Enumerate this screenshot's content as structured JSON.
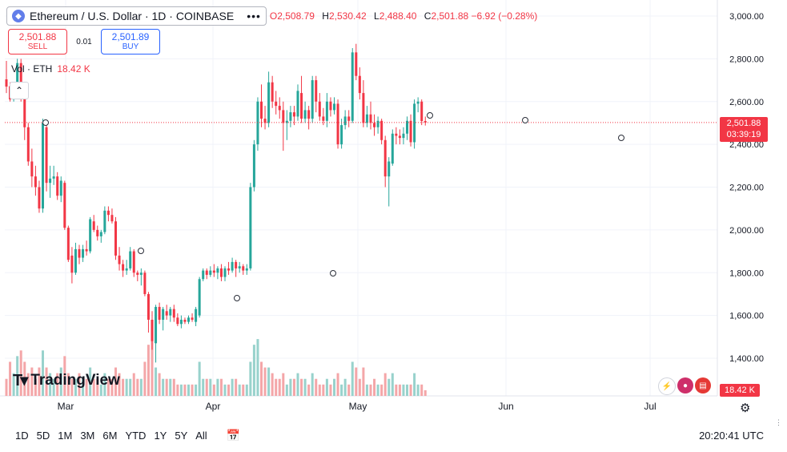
{
  "symbol": {
    "title": "Ethereum / U.S. Dollar · 1D · COINBASE",
    "logo_icon": "ethereum-icon",
    "menu_dots": "•••",
    "open": "O2,508.79",
    "high_k": "H",
    "high": "2,530.42",
    "low_k": "L",
    "low": "2,488.40",
    "close_k": "C",
    "close": "2,501.88",
    "change": "−6.92 (−0.28%)"
  },
  "trade": {
    "sell_price": "2,501.88",
    "sell_label": "SELL",
    "spread": "0.01",
    "buy_price": "2,501.89",
    "buy_label": "BUY"
  },
  "volume_legend": {
    "label": "Vol · ETH",
    "value": "18.42 K"
  },
  "price_label": {
    "price": "2,501.88",
    "countdown": "03:39:19"
  },
  "volume_label": "18.42 K",
  "brand": {
    "name": "TradingView"
  },
  "bottom": {
    "ranges": [
      "1D",
      "5D",
      "1M",
      "3M",
      "6M",
      "YTD",
      "1Y",
      "5Y",
      "All"
    ],
    "clock": "20:20:41 UTC"
  },
  "colors": {
    "up": "#26a69a",
    "down": "#f23645",
    "vol_up": "#98d2cc",
    "vol_down": "#f4a6a8",
    "grid": "#f0f3fa"
  },
  "chart_data": {
    "type": "candlestick",
    "series": [
      {
        "name": "Ethereum / U.S. Dollar",
        "ohlc": [
          [
            2704,
            2790,
            2640,
            2670
          ],
          [
            2672,
            2690,
            2600,
            2610
          ],
          [
            2610,
            2660,
            2600,
            2650
          ],
          [
            2650,
            2800,
            2640,
            2780
          ],
          [
            2780,
            2800,
            2600,
            2630
          ],
          [
            2640,
            2660,
            2420,
            2480
          ],
          [
            2480,
            2500,
            2300,
            2320
          ],
          [
            2320,
            2380,
            2200,
            2250
          ],
          [
            2250,
            2300,
            2160,
            2200
          ],
          [
            2200,
            2230,
            2080,
            2100
          ],
          [
            2100,
            2520,
            2080,
            2500
          ],
          [
            2480,
            2500,
            2180,
            2220
          ],
          [
            2220,
            2300,
            2150,
            2240
          ],
          [
            2240,
            2300,
            2210,
            2250
          ],
          [
            2250,
            2270,
            2140,
            2160
          ],
          [
            2160,
            2250,
            2130,
            2230
          ],
          [
            2220,
            2230,
            2000,
            2010
          ],
          [
            2010,
            2020,
            1850,
            1860
          ],
          [
            1880,
            1920,
            1750,
            1800
          ],
          [
            1800,
            1940,
            1790,
            1910
          ],
          [
            1910,
            1930,
            1840,
            1870
          ],
          [
            1870,
            1930,
            1850,
            1910
          ],
          [
            1910,
            1950,
            1880,
            1900
          ],
          [
            1900,
            2060,
            1890,
            2050
          ],
          [
            2040,
            2070,
            1990,
            2000
          ],
          [
            2000,
            2020,
            1950,
            1970
          ],
          [
            1970,
            2000,
            1940,
            1990
          ],
          [
            1990,
            2110,
            1980,
            2090
          ],
          [
            2090,
            2110,
            2040,
            2070
          ],
          [
            2070,
            2100,
            2030,
            2040
          ],
          [
            2040,
            2060,
            1860,
            1880
          ],
          [
            1880,
            1920,
            1810,
            1840
          ],
          [
            1840,
            1860,
            1780,
            1810
          ],
          [
            1810,
            1860,
            1790,
            1820
          ],
          [
            1820,
            1920,
            1810,
            1900
          ],
          [
            1900,
            1910,
            1780,
            1800
          ],
          [
            1800,
            1810,
            1760,
            1790
          ],
          [
            1790,
            1820,
            1740,
            1800
          ],
          [
            1800,
            1810,
            1690,
            1700
          ],
          [
            1700,
            1710,
            1520,
            1580
          ],
          [
            1580,
            1620,
            1440,
            1480
          ],
          [
            1470,
            1650,
            1380,
            1640
          ],
          [
            1640,
            1660,
            1560,
            1580
          ],
          [
            1580,
            1640,
            1530,
            1630
          ],
          [
            1620,
            1650,
            1580,
            1600
          ],
          [
            1600,
            1640,
            1570,
            1630
          ],
          [
            1630,
            1650,
            1570,
            1590
          ],
          [
            1590,
            1610,
            1550,
            1560
          ],
          [
            1560,
            1600,
            1540,
            1580
          ],
          [
            1580,
            1590,
            1560,
            1570
          ],
          [
            1570,
            1600,
            1560,
            1590
          ],
          [
            1590,
            1610,
            1570,
            1580
          ],
          [
            1570,
            1640,
            1550,
            1630
          ],
          [
            1600,
            1780,
            1590,
            1770
          ],
          [
            1770,
            1820,
            1760,
            1810
          ],
          [
            1810,
            1820,
            1770,
            1790
          ],
          [
            1790,
            1830,
            1780,
            1810
          ],
          [
            1810,
            1840,
            1780,
            1800
          ],
          [
            1800,
            1830,
            1770,
            1820
          ],
          [
            1820,
            1840,
            1760,
            1780
          ],
          [
            1780,
            1830,
            1760,
            1820
          ],
          [
            1820,
            1850,
            1790,
            1810
          ],
          [
            1810,
            1870,
            1800,
            1850
          ],
          [
            1850,
            1860,
            1780,
            1820
          ],
          [
            1820,
            1850,
            1800,
            1830
          ],
          [
            1830,
            1840,
            1790,
            1810
          ],
          [
            1810,
            1840,
            1790,
            1820
          ],
          [
            1820,
            2220,
            1810,
            2200
          ],
          [
            2200,
            2420,
            2180,
            2400
          ],
          [
            2400,
            2620,
            2370,
            2600
          ],
          [
            2600,
            2680,
            2480,
            2520
          ],
          [
            2520,
            2580,
            2470,
            2500
          ],
          [
            2500,
            2740,
            2480,
            2690
          ],
          [
            2690,
            2720,
            2570,
            2600
          ],
          [
            2600,
            2650,
            2540,
            2580
          ],
          [
            2580,
            2620,
            2520,
            2560
          ],
          [
            2560,
            2600,
            2370,
            2500
          ],
          [
            2500,
            2560,
            2420,
            2510
          ],
          [
            2510,
            2580,
            2480,
            2550
          ],
          [
            2550,
            2580,
            2490,
            2530
          ],
          [
            2530,
            2680,
            2510,
            2650
          ],
          [
            2640,
            2720,
            2500,
            2520
          ],
          [
            2520,
            2600,
            2500,
            2560
          ],
          [
            2560,
            2580,
            2470,
            2520
          ],
          [
            2520,
            2720,
            2500,
            2700
          ],
          [
            2700,
            2720,
            2550,
            2600
          ],
          [
            2600,
            2640,
            2510,
            2530
          ],
          [
            2530,
            2570,
            2490,
            2510
          ],
          [
            2510,
            2640,
            2480,
            2600
          ],
          [
            2600,
            2620,
            2530,
            2560
          ],
          [
            2560,
            2620,
            2540,
            2590
          ],
          [
            2590,
            2610,
            2380,
            2400
          ],
          [
            2400,
            2520,
            2380,
            2490
          ],
          [
            2490,
            2560,
            2470,
            2530
          ],
          [
            2530,
            2560,
            2480,
            2510
          ],
          [
            2510,
            2850,
            2500,
            2830
          ],
          [
            2830,
            2870,
            2700,
            2720
          ],
          [
            2720,
            2760,
            2610,
            2640
          ],
          [
            2640,
            2700,
            2480,
            2500
          ],
          [
            2500,
            2580,
            2480,
            2540
          ],
          [
            2540,
            2600,
            2470,
            2500
          ],
          [
            2500,
            2540,
            2440,
            2480
          ],
          [
            2480,
            2530,
            2450,
            2510
          ],
          [
            2510,
            2520,
            2400,
            2420
          ],
          [
            2420,
            2440,
            2200,
            2250
          ],
          [
            2250,
            2340,
            2110,
            2320
          ],
          [
            2310,
            2470,
            2300,
            2450
          ],
          [
            2450,
            2480,
            2400,
            2440
          ],
          [
            2440,
            2470,
            2400,
            2430
          ],
          [
            2430,
            2480,
            2400,
            2450
          ],
          [
            2450,
            2530,
            2420,
            2510
          ],
          [
            2510,
            2540,
            2390,
            2410
          ],
          [
            2410,
            2610,
            2380,
            2590
          ],
          [
            2590,
            2620,
            2550,
            2600
          ],
          [
            2600,
            2610,
            2490,
            2509
          ],
          [
            2509,
            2530,
            2488,
            2502
          ]
        ]
      }
    ],
    "volume": [
      3,
      6,
      4,
      7,
      8,
      6,
      4,
      5,
      3,
      5,
      8,
      5,
      4,
      3,
      4,
      5,
      7,
      4,
      3,
      3,
      4,
      3,
      3,
      5,
      3,
      3,
      2,
      4,
      3,
      3,
      5,
      4,
      3,
      3,
      3,
      4,
      3,
      3,
      6,
      9,
      11,
      5,
      4,
      3,
      3,
      3,
      3,
      2,
      2,
      2,
      2,
      2,
      2,
      6,
      3,
      3,
      3,
      2,
      3,
      3,
      2,
      2,
      3,
      3,
      2,
      2,
      2,
      6,
      9,
      10,
      6,
      5,
      5,
      4,
      3,
      3,
      4,
      2,
      3,
      3,
      4,
      3,
      3,
      2,
      4,
      3,
      2,
      2,
      3,
      2,
      3,
      4,
      2,
      3,
      2,
      6,
      5,
      3,
      5,
      2,
      2,
      3,
      2,
      2,
      4,
      3,
      4,
      2,
      2,
      2,
      2,
      2,
      4,
      2,
      2,
      1
    ],
    "x_tick_labels": [
      "Mar",
      "Apr",
      "May",
      "Jun",
      "Jul"
    ],
    "y_tick_labels": [
      "1,400.00",
      "1,600.00",
      "1,800.00",
      "2,000.00",
      "2,200.00",
      "2,400.00",
      "2,600.00",
      "2,800.00",
      "3,000.00"
    ],
    "y_range": [
      1240,
      3050
    ]
  }
}
